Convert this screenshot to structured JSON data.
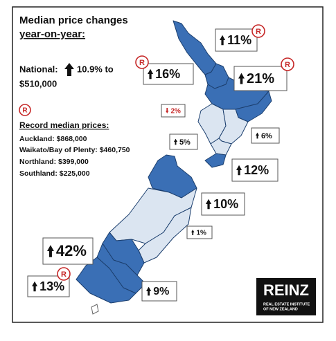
{
  "title": [
    "Median price changes",
    "year-on-year:"
  ],
  "national": {
    "label": "National:",
    "change": "10.9% to",
    "price": "$510,000"
  },
  "record_badge": "R",
  "record_heading": "Record median prices:",
  "record_prices": [
    "Auckland: $868,000",
    "Waikato/Bay of Plenty: $460,750",
    "Northland: $399,000",
    "Southland: $225,000"
  ],
  "callouts": [
    "11%",
    "16%",
    "21%",
    "2%",
    "6%",
    "5%",
    "12%",
    "10%",
    "1%",
    "42%",
    "13%",
    "9%"
  ],
  "logo": {
    "name": "REINZ",
    "line1": "REAL ESTATE INSTITUTE",
    "line2": "OF NEW ZEALAND"
  }
}
